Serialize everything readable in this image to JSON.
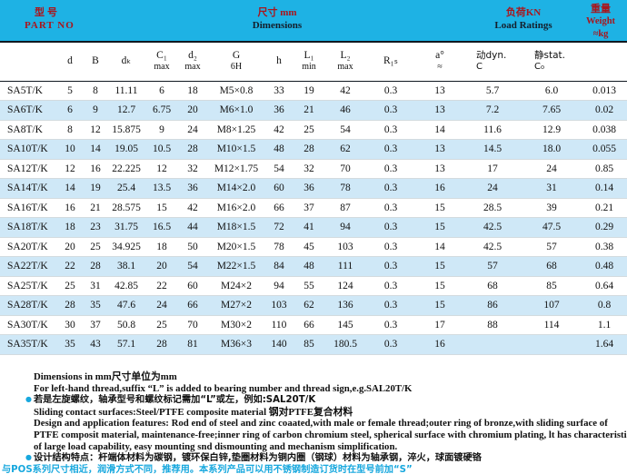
{
  "banner": {
    "part_no_zh": "型号",
    "part_no_en": "PART NO",
    "dims_zh": "尺寸 mm",
    "dims_en": "Dimensions",
    "load_zh": "负荷KN",
    "load_en": "Load Ratings",
    "weight_zh": "重量",
    "weight_en": "Weight",
    "weight_unit": "≈kg"
  },
  "colors": {
    "banner_cyan": "#1eb2e4",
    "row_alt_blue": "#cfe8f7",
    "heading_red": "#a8161d",
    "note_cyan": "#18a8de"
  },
  "table": {
    "columns": [
      {
        "key": "part",
        "l1": "",
        "l2": ""
      },
      {
        "key": "d",
        "l1": "d",
        "l2": ""
      },
      {
        "key": "b",
        "l1": "B",
        "l2": ""
      },
      {
        "key": "dk",
        "l1": "dₖ",
        "l2": ""
      },
      {
        "key": "c1",
        "l1": "C₁",
        "l2": "max"
      },
      {
        "key": "d2",
        "l1": "d₂",
        "l2": "max"
      },
      {
        "key": "g",
        "l1": "G",
        "l2": "6H"
      },
      {
        "key": "h",
        "l1": "h",
        "l2": ""
      },
      {
        "key": "l1",
        "l1": "L₁",
        "l2": "min"
      },
      {
        "key": "l2",
        "l1": "L₂",
        "l2": "max"
      },
      {
        "key": "r1s",
        "l1": "R₁ₛ",
        "l2": ""
      },
      {
        "key": "a",
        "l1": "a°",
        "l2": "≈"
      },
      {
        "key": "dyn-c",
        "l1": "动dyn.",
        "l2": "C",
        "align": "left"
      },
      {
        "key": "stat-c0",
        "l1": "静stat.",
        "l2": "C₀",
        "align": "left"
      },
      {
        "key": "weight",
        "l1": "",
        "l2": ""
      }
    ],
    "rows": [
      [
        "SA5T/K",
        "5",
        "8",
        "11.11",
        "6",
        "18",
        "M5×0.8",
        "33",
        "19",
        "42",
        "0.3",
        "13",
        "5.7",
        "6.0",
        "0.013"
      ],
      [
        "SA6T/K",
        "6",
        "9",
        "12.7",
        "6.75",
        "20",
        "M6×1.0",
        "36",
        "21",
        "46",
        "0.3",
        "13",
        "7.2",
        "7.65",
        "0.02"
      ],
      [
        "SA8T/K",
        "8",
        "12",
        "15.875",
        "9",
        "24",
        "M8×1.25",
        "42",
        "25",
        "54",
        "0.3",
        "14",
        "11.6",
        "12.9",
        "0.038"
      ],
      [
        "SA10T/K",
        "10",
        "14",
        "19.05",
        "10.5",
        "28",
        "M10×1.5",
        "48",
        "28",
        "62",
        "0.3",
        "13",
        "14.5",
        "18.0",
        "0.055"
      ],
      [
        "SA12T/K",
        "12",
        "16",
        "22.225",
        "12",
        "32",
        "M12×1.75",
        "54",
        "32",
        "70",
        "0.3",
        "13",
        "17",
        "24",
        "0.85"
      ],
      [
        "SA14T/K",
        "14",
        "19",
        "25.4",
        "13.5",
        "36",
        "M14×2.0",
        "60",
        "36",
        "78",
        "0.3",
        "16",
        "24",
        "31",
        "0.14"
      ],
      [
        "SA16T/K",
        "16",
        "21",
        "28.575",
        "15",
        "42",
        "M16×2.0",
        "66",
        "37",
        "87",
        "0.3",
        "15",
        "28.5",
        "39",
        "0.21"
      ],
      [
        "SA18T/K",
        "18",
        "23",
        "31.75",
        "16.5",
        "44",
        "M18×1.5",
        "72",
        "41",
        "94",
        "0.3",
        "15",
        "42.5",
        "47.5",
        "0.29"
      ],
      [
        "SA20T/K",
        "20",
        "25",
        "34.925",
        "18",
        "50",
        "M20×1.5",
        "78",
        "45",
        "103",
        "0.3",
        "14",
        "42.5",
        "57",
        "0.38"
      ],
      [
        "SA22T/K",
        "22",
        "28",
        "38.1",
        "20",
        "54",
        "M22×1.5",
        "84",
        "48",
        "111",
        "0.3",
        "15",
        "57",
        "68",
        "0.48"
      ],
      [
        "SA25T/K",
        "25",
        "31",
        "42.85",
        "22",
        "60",
        "M24×2",
        "94",
        "55",
        "124",
        "0.3",
        "15",
        "68",
        "85",
        "0.64"
      ],
      [
        "SA28T/K",
        "28",
        "35",
        "47.6",
        "24",
        "66",
        "M27×2",
        "103",
        "62",
        "136",
        "0.3",
        "15",
        "86",
        "107",
        "0.8"
      ],
      [
        "SA30T/K",
        "30",
        "37",
        "50.8",
        "25",
        "70",
        "M30×2",
        "110",
        "66",
        "145",
        "0.3",
        "17",
        "88",
        "114",
        "1.1"
      ],
      [
        "SA35T/K",
        "35",
        "43",
        "57.1",
        "28",
        "81",
        "M36×3",
        "140",
        "85",
        "180.5",
        "0.3",
        "16",
        "",
        "",
        "1.64"
      ]
    ]
  },
  "notes": {
    "lines": [
      {
        "style": "en",
        "bullet": false,
        "text": "Dimensions in mm尺寸单位为mm"
      },
      {
        "style": "en",
        "bullet": false,
        "text": "For left-hand thread,suffix “L” is added to bearing number and thread sign,e.g.SAL20T/K"
      },
      {
        "style": "zh",
        "bullet": true,
        "text": "若是左旋螺纹，轴承型号和螺纹标记需加“L”或左，例如:SAL20T/K"
      },
      {
        "style": "en",
        "bullet": false,
        "text": "Sliding contact surfaces:Steel/PTFE composite material 钢对PTFE复合材料"
      },
      {
        "style": "en",
        "bullet": false,
        "text": "Design and application features: Rod end of steel and zinc coaated,with male or female thread;outer ring of bronze,with sliding surface of"
      },
      {
        "style": "en",
        "bullet": false,
        "text": "PTFE composit material, maintenance-free;inner ring of carbon chromium steel, spherical surface with chromium plating, lt has characteristics"
      },
      {
        "style": "en",
        "bullet": false,
        "text": "of large load capability, easy mounting snd dismounting and  mechanism simplification."
      },
      {
        "style": "zh",
        "bullet": true,
        "text": "设计结构特点：杆端体材料为碳钢，镀环保白锌,垫圈材料为铜内圈（钢球）材料为轴承钢，淬火，球面镀硬铬"
      },
      {
        "style": "cyan",
        "bullet": false,
        "text": "与POS系列尺寸相近，润滑方式不同，推荐用。本系列产品可以用不锈钢制造订货时在型号前加“S”"
      }
    ]
  }
}
